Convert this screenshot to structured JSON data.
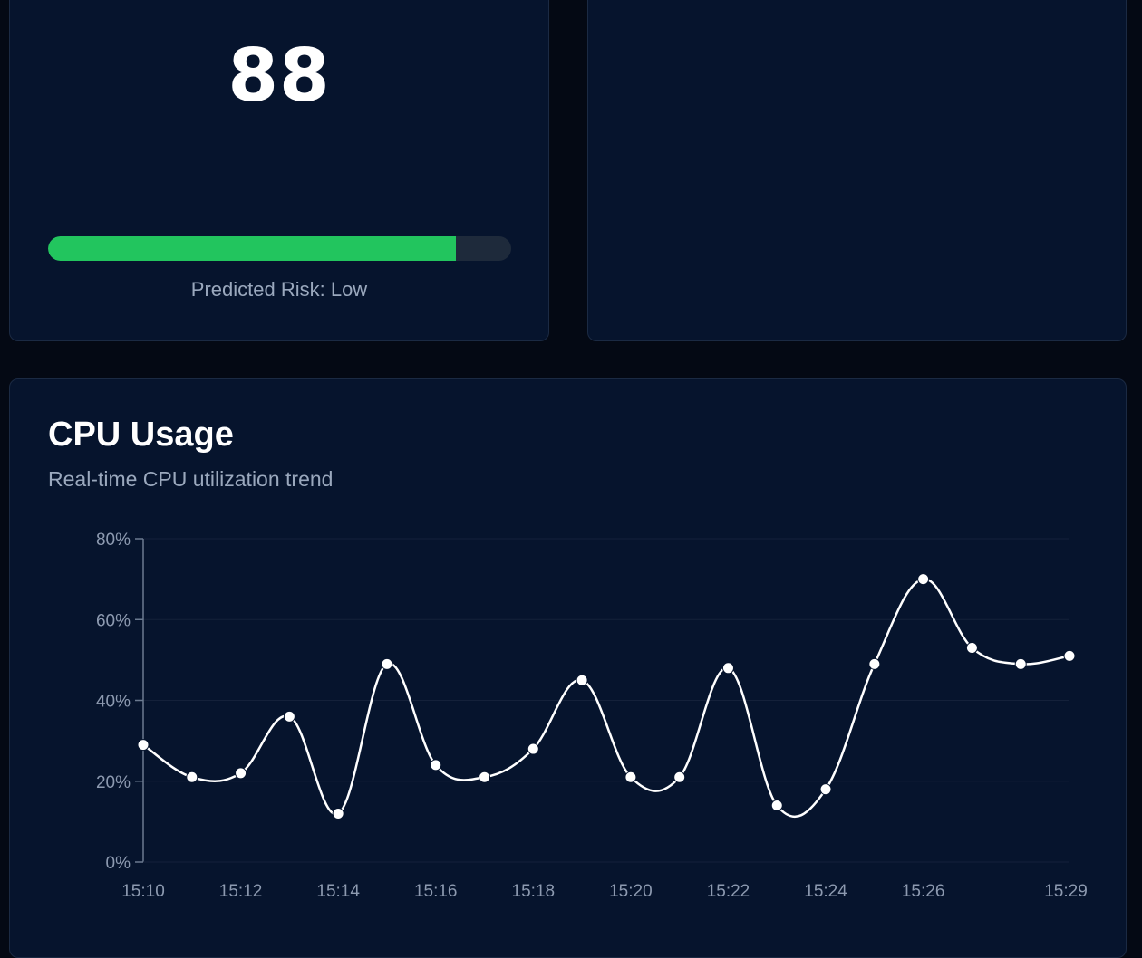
{
  "score_card": {
    "score": "88",
    "progress_fraction": 0.88,
    "risk_label": "Predicted Risk: Low",
    "progress_color": "#22c55e"
  },
  "cpu_card": {
    "title": "CPU Usage",
    "subtitle": "Real-time CPU utilization trend"
  },
  "chart_data": {
    "type": "line",
    "title": "CPU Usage",
    "subtitle": "Real-time CPU utilization trend",
    "xlabel": "",
    "ylabel": "",
    "ylim": [
      0,
      80
    ],
    "y_ticks": [
      "0%",
      "20%",
      "40%",
      "60%",
      "80%"
    ],
    "y_tick_values": [
      0,
      20,
      40,
      60,
      80
    ],
    "x": [
      "15:10",
      "15:11",
      "15:12",
      "15:13",
      "15:14",
      "15:15",
      "15:16",
      "15:17",
      "15:18",
      "15:19",
      "15:20",
      "15:21",
      "15:22",
      "15:23",
      "15:24",
      "15:25",
      "15:26",
      "15:27",
      "15:28",
      "15:29"
    ],
    "x_tick_labels": [
      "15:10",
      "15:12",
      "15:14",
      "15:16",
      "15:18",
      "15:20",
      "15:22",
      "15:24",
      "15:26",
      "15:29"
    ],
    "series": [
      {
        "name": "CPU",
        "values": [
          29,
          21,
          22,
          36,
          12,
          49,
          24,
          21,
          28,
          45,
          21,
          21,
          48,
          14,
          18,
          49,
          70,
          53,
          49,
          51
        ],
        "color": "#ffffff"
      }
    ],
    "grid": true,
    "grid_color": "#14213a"
  }
}
